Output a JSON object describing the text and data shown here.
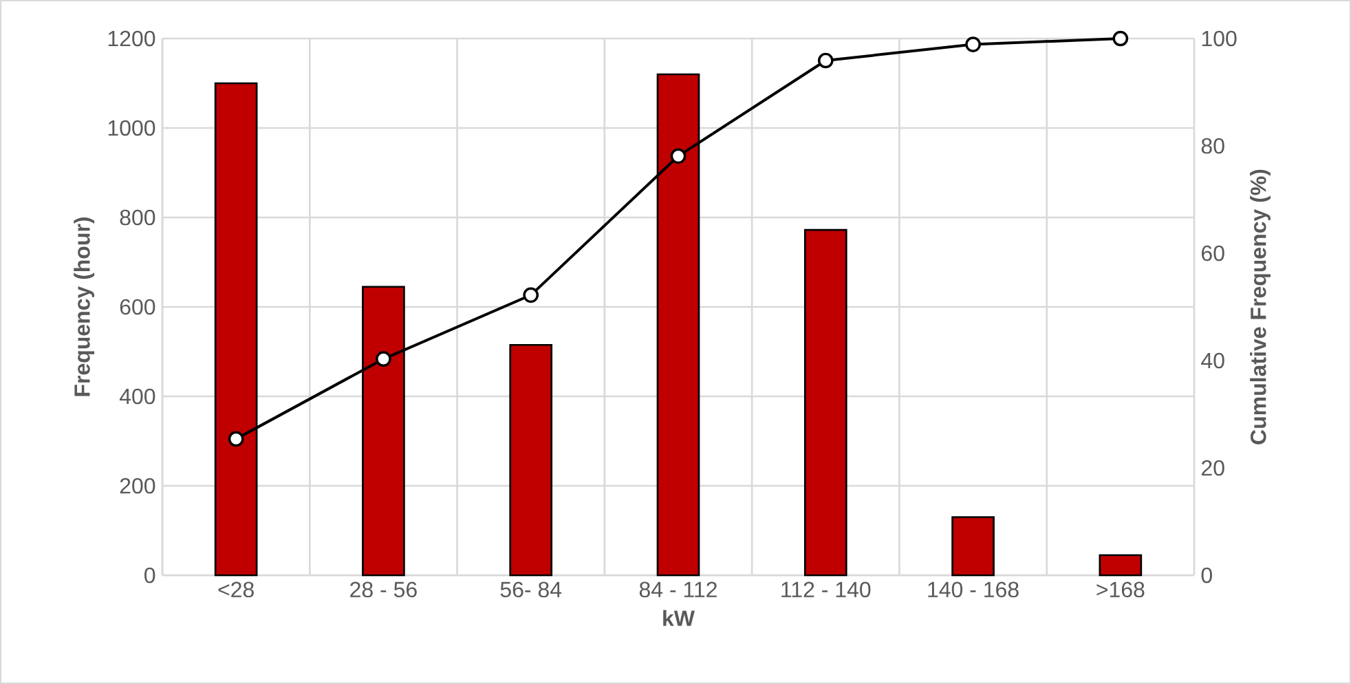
{
  "chart_data": {
    "type": "bar",
    "xlabel": "kW",
    "ylabel": "Frequency (hour)",
    "y2label": "Cumulative Frequency (%)",
    "categories": [
      "<28",
      "28 - 56",
      "56- 84",
      "84 - 112",
      "112 - 140",
      "140 - 168",
      ">168"
    ],
    "series": [
      {
        "color": "#c00000",
        "values": [
          1100,
          645,
          515,
          1120,
          772,
          130,
          45
        ]
      },
      {
        "type": "line",
        "axis": "y2",
        "color": "#000000",
        "values": [
          25.4,
          40.3,
          52.2,
          78.1,
          95.9,
          98.9,
          100
        ]
      }
    ],
    "ylim": [
      0,
      1200
    ],
    "yticks": [
      0,
      200,
      400,
      600,
      800,
      1000,
      1200
    ],
    "y2lim": [
      0,
      100
    ],
    "y2ticks": [
      0,
      20,
      40,
      60,
      80,
      100
    ],
    "grid": true,
    "marker": "circle"
  }
}
